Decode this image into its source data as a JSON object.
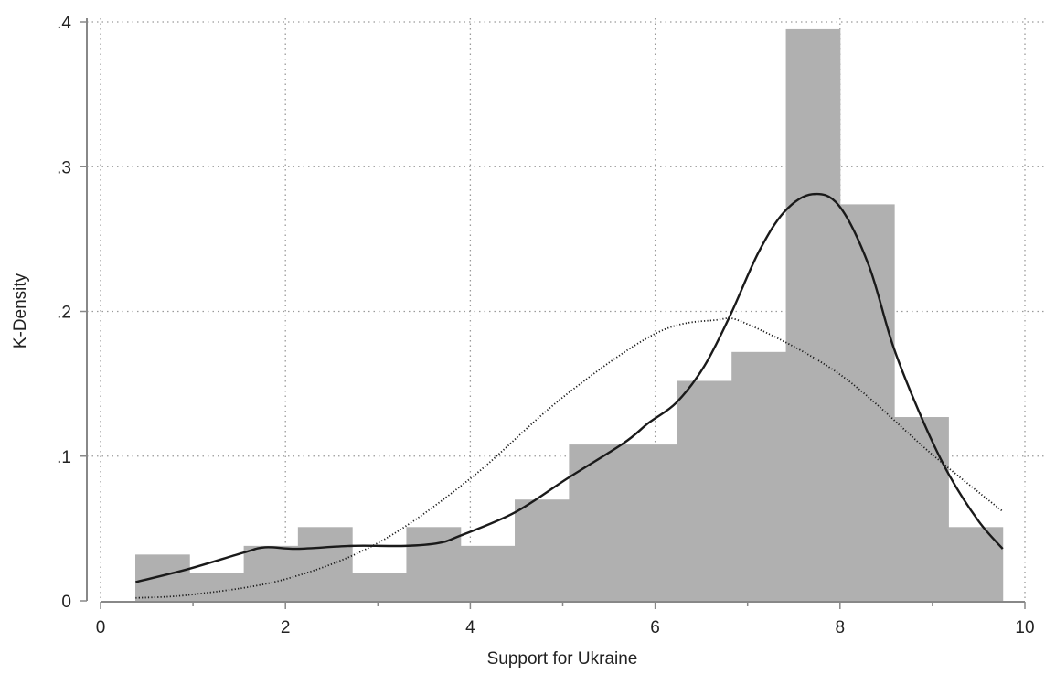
{
  "chart_data": {
    "type": "bar",
    "title": "",
    "xlabel": "Support for Ukraine",
    "ylabel": "K-Density",
    "xlim": [
      0,
      10
    ],
    "ylim": [
      0,
      0.4
    ],
    "xticks": [
      0,
      2,
      4,
      6,
      8,
      10
    ],
    "xtick_labels": [
      "0",
      "2",
      "4",
      "6",
      "8",
      "10"
    ],
    "yticks": [
      0,
      0.1,
      0.2,
      0.3,
      0.4
    ],
    "ytick_labels": [
      "0",
      ".1",
      ".2",
      ".3",
      ".4"
    ],
    "grid": true,
    "histogram": {
      "bin_edges": [
        0.376,
        0.962,
        1.549,
        2.135,
        2.722,
        3.308,
        3.895,
        4.481,
        5.068,
        5.654,
        6.241,
        6.827,
        7.414,
        8.0,
        8.587,
        9.173,
        9.76
      ],
      "values": [
        0.032,
        0.019,
        0.038,
        0.051,
        0.019,
        0.051,
        0.038,
        0.07,
        0.108,
        0.108,
        0.152,
        0.172,
        0.395,
        0.274,
        0.127,
        0.051
      ],
      "color": "#b0b0b0"
    },
    "series": [
      {
        "style": "solid",
        "color": "#1a1a1a",
        "x": [
          0.38,
          0.95,
          1.53,
          1.78,
          2.13,
          2.72,
          3.3,
          3.66,
          3.89,
          4.48,
          5.06,
          5.66,
          5.93,
          6.23,
          6.53,
          6.81,
          7.12,
          7.4,
          7.7,
          7.99,
          8.31,
          8.58,
          8.9,
          9.18,
          9.5,
          9.76
        ],
        "y": [
          0.013,
          0.022,
          0.033,
          0.037,
          0.036,
          0.038,
          0.038,
          0.04,
          0.045,
          0.061,
          0.085,
          0.109,
          0.123,
          0.137,
          0.162,
          0.197,
          0.241,
          0.269,
          0.281,
          0.273,
          0.232,
          0.175,
          0.124,
          0.087,
          0.055,
          0.036
        ]
      },
      {
        "style": "dotted",
        "color": "#1a1a1a",
        "x": [
          0.38,
          1,
          2,
          3,
          4,
          5,
          6,
          6.65,
          7,
          8,
          9,
          9.76
        ],
        "y": [
          0.002,
          0.0044,
          0.015,
          0.04,
          0.0845,
          0.1406,
          0.1846,
          0.194,
          0.1912,
          0.1564,
          0.101,
          0.0618
        ]
      }
    ],
    "axis_color": "#888888",
    "grid_color": "#9a9a9a"
  }
}
